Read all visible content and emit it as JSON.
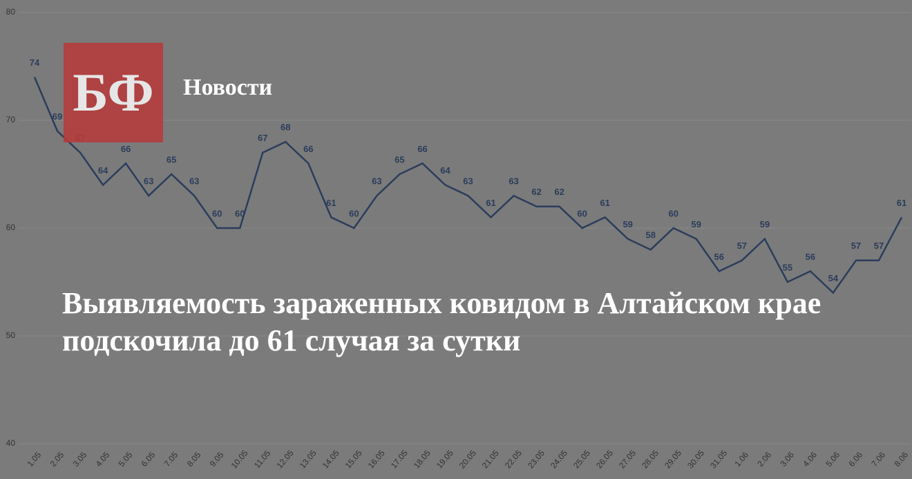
{
  "brand": {
    "logo": "БФ",
    "section": "Новости"
  },
  "headline": "Выявляемость зараженных ковидом в Алтайском крае подскочила до 61 случая за сутки",
  "chart_data": {
    "type": "line",
    "categories": [
      "1.05",
      "2.05",
      "3.05",
      "4.05",
      "5.05",
      "6.05",
      "7.05",
      "8.05",
      "9.05",
      "10.05",
      "11.05",
      "12.05",
      "13.05",
      "14.05",
      "15.05",
      "16.05",
      "17.05",
      "18.05",
      "19.05",
      "20.05",
      "21.05",
      "22.05",
      "23.05",
      "24.05",
      "25.05",
      "26.05",
      "27.05",
      "28.05",
      "29.05",
      "30.05",
      "31.05",
      "1.06",
      "2.06",
      "3.06",
      "4.06",
      "5.06",
      "6.06",
      "7.06",
      "8.06"
    ],
    "values": [
      74,
      69,
      67,
      64,
      66,
      63,
      65,
      63,
      60,
      60,
      67,
      68,
      66,
      61,
      60,
      63,
      65,
      66,
      64,
      63,
      61,
      63,
      62,
      62,
      60,
      61,
      59,
      58,
      60,
      59,
      56,
      57,
      59,
      55,
      56,
      54,
      57,
      57,
      61
    ],
    "color": "#2b3d5c",
    "ylim": [
      40,
      80
    ],
    "yticks": [
      40,
      50,
      60,
      70,
      80
    ],
    "grid": true
  }
}
